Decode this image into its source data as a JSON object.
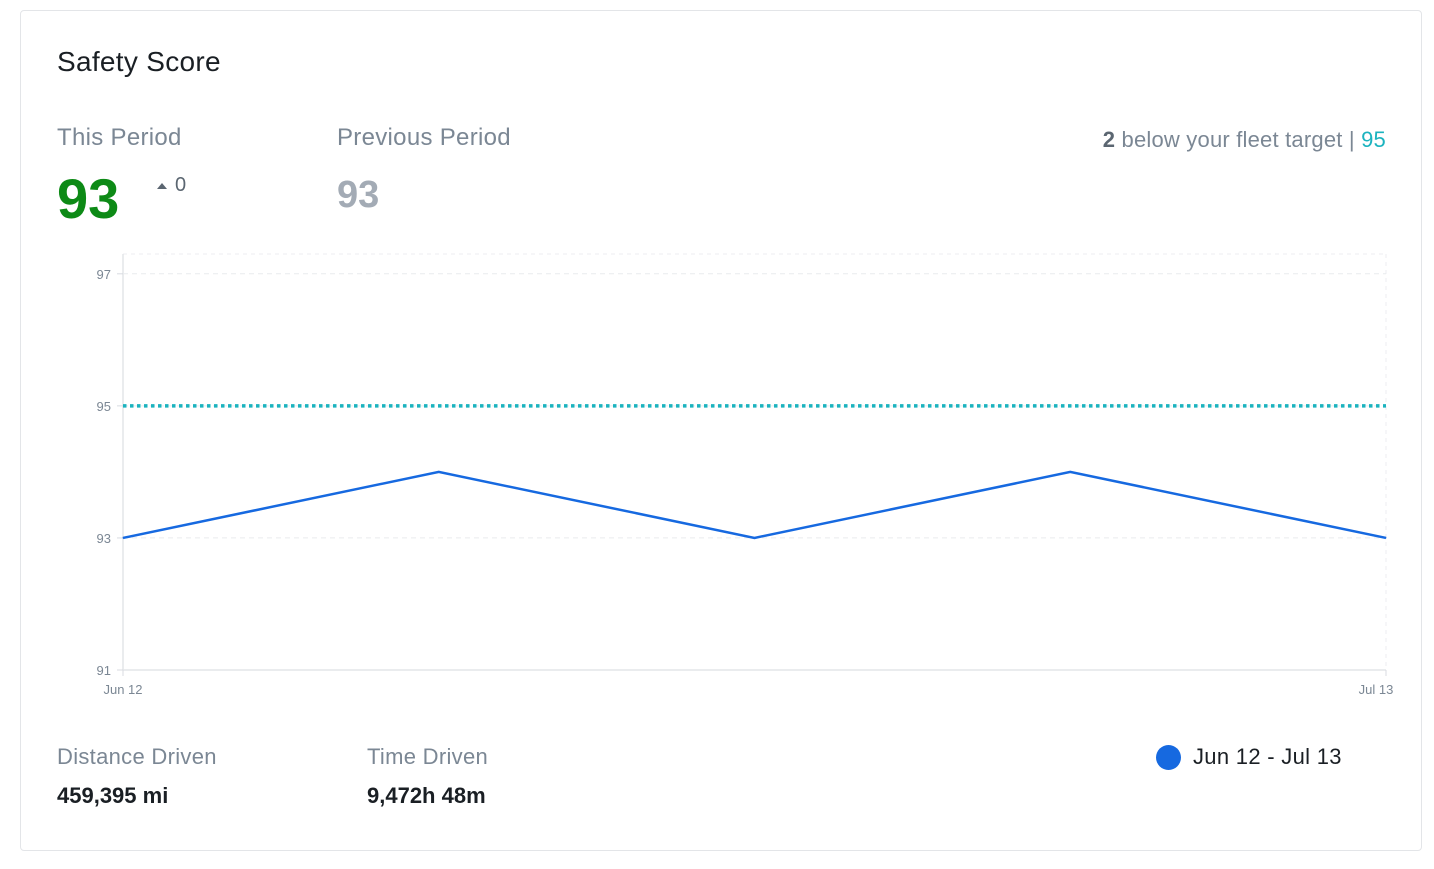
{
  "card": {
    "title": "Safety Score",
    "this_period": {
      "label": "This Period",
      "value": "93",
      "delta": "0"
    },
    "previous_period": {
      "label": "Previous Period",
      "value": "93"
    },
    "fleet_target": {
      "diff": "2",
      "text": "below your fleet target",
      "separator": "|",
      "target": "95"
    }
  },
  "chart_data": {
    "type": "line",
    "x": [
      "Jun 12",
      "",
      "",
      "",
      "Jul 13"
    ],
    "x_tick_labels": [
      "Jun 12",
      "Jul 13"
    ],
    "series": [
      {
        "name": "Jun 12 - Jul 13",
        "color": "#1669e0",
        "values": [
          93,
          94,
          93,
          94,
          93
        ]
      }
    ],
    "reference_line": {
      "value": 95,
      "style": "dotted",
      "color": "#1bb3bf"
    },
    "y_ticks": [
      91,
      93,
      95,
      97
    ],
    "ylim": [
      91,
      97.3
    ],
    "grid": true,
    "legend_position": "bottom-right"
  },
  "stats": {
    "distance": {
      "label": "Distance Driven",
      "value": "459,395 mi"
    },
    "time": {
      "label": "Time Driven",
      "value": "9,472h 48m"
    }
  },
  "legend": {
    "label": "Jun 12 - Jul 13",
    "color": "#1669e0"
  }
}
